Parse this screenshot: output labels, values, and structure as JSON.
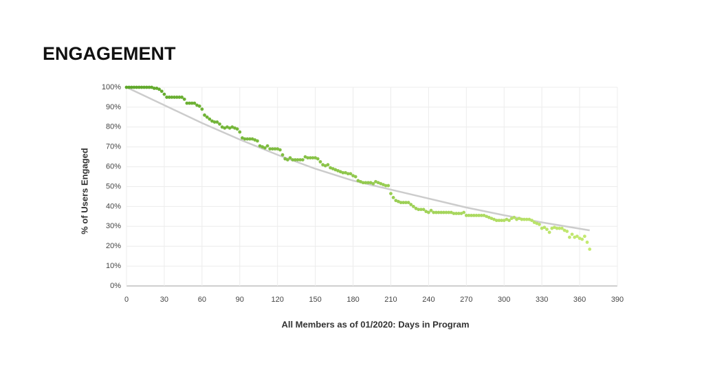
{
  "chart_data": {
    "type": "scatter",
    "title": "ENGAGEMENT",
    "xlabel": "All Members as of 01/2020: Days in Program",
    "ylabel": "% of Users Engaged",
    "xlim": [
      0,
      390
    ],
    "ylim": [
      0,
      100
    ],
    "xticks": [
      0,
      30,
      60,
      90,
      120,
      150,
      180,
      210,
      240,
      270,
      300,
      330,
      360,
      390
    ],
    "yticks": [
      {
        "value": 0,
        "label": "0%"
      },
      {
        "value": 10,
        "label": "10%"
      },
      {
        "value": 20,
        "label": "20%"
      },
      {
        "value": 30,
        "label": "30%"
      },
      {
        "value": 40,
        "label": "40%"
      },
      {
        "value": 50,
        "label": "50%"
      },
      {
        "value": 60,
        "label": "60%"
      },
      {
        "value": 70,
        "label": "70%"
      },
      {
        "value": 80,
        "label": "80%"
      },
      {
        "value": 90,
        "label": "90%"
      },
      {
        "value": 100,
        "label": "100%"
      }
    ],
    "grid": true,
    "colors": [
      "#5ea72a",
      "#cbee76"
    ],
    "x": [
      0,
      2,
      4,
      6,
      8,
      10,
      12,
      14,
      16,
      18,
      20,
      22,
      24,
      26,
      28,
      30,
      32,
      34,
      36,
      38,
      40,
      42,
      44,
      46,
      48,
      50,
      52,
      54,
      56,
      58,
      60,
      62,
      64,
      66,
      68,
      70,
      72,
      74,
      76,
      78,
      80,
      82,
      84,
      86,
      88,
      90,
      92,
      94,
      96,
      98,
      100,
      102,
      104,
      106,
      108,
      110,
      112,
      114,
      116,
      118,
      120,
      122,
      124,
      126,
      128,
      130,
      132,
      134,
      136,
      138,
      140,
      142,
      144,
      146,
      148,
      150,
      152,
      154,
      156,
      158,
      160,
      162,
      164,
      166,
      168,
      170,
      172,
      174,
      176,
      178,
      180,
      182,
      184,
      186,
      188,
      190,
      192,
      194,
      196,
      198,
      200,
      202,
      204,
      206,
      208,
      210,
      212,
      214,
      216,
      218,
      220,
      222,
      224,
      226,
      228,
      230,
      232,
      234,
      236,
      238,
      240,
      242,
      244,
      246,
      248,
      250,
      252,
      254,
      256,
      258,
      260,
      262,
      264,
      266,
      268,
      270,
      272,
      274,
      276,
      278,
      280,
      282,
      284,
      286,
      288,
      290,
      292,
      294,
      296,
      298,
      300,
      302,
      304,
      306,
      308,
      310,
      312,
      314,
      316,
      318,
      320,
      322,
      324,
      326,
      328,
      330,
      332,
      334,
      336,
      338,
      340,
      342,
      344,
      346,
      348,
      350,
      352,
      354,
      356,
      358,
      360,
      362,
      364,
      366,
      368
    ],
    "values": [
      100,
      100,
      100,
      100,
      100,
      100,
      100,
      100,
      100,
      100,
      100,
      99.5,
      99.5,
      99,
      98,
      96.5,
      95,
      95,
      95,
      95,
      95,
      95,
      95,
      94,
      92,
      92,
      92,
      92,
      91,
      90.5,
      89,
      86,
      85,
      84,
      83,
      82.5,
      82.5,
      81.5,
      80,
      79.5,
      80,
      79.5,
      80,
      79.5,
      79,
      77.5,
      74.5,
      74,
      74,
      74,
      74,
      73.5,
      73,
      70.5,
      70,
      69.5,
      70.5,
      69,
      69,
      69,
      69,
      68.5,
      66,
      64,
      63.5,
      64.5,
      63.5,
      63.5,
      63.5,
      63.5,
      63.5,
      65,
      64.5,
      64.5,
      64.5,
      64.5,
      64,
      62.5,
      61,
      60.5,
      61,
      59.5,
      59,
      58.5,
      58,
      57.5,
      57,
      57,
      56.5,
      56.5,
      55.5,
      55,
      53,
      52.5,
      52,
      52,
      52,
      52,
      51.5,
      52.5,
      52,
      51.5,
      51,
      50.5,
      50.5,
      46.5,
      44.5,
      43,
      42.5,
      42,
      42,
      42,
      42,
      41,
      40,
      39,
      38.5,
      38.5,
      38.5,
      37.5,
      37,
      38,
      37,
      37,
      37,
      37,
      37,
      37,
      37,
      37,
      36.5,
      36.5,
      36.5,
      36.5,
      37,
      35.5,
      35.5,
      35.5,
      35.5,
      35.5,
      35.5,
      35.5,
      35.5,
      35,
      34.5,
      34,
      33.5,
      33,
      33,
      33,
      33,
      33.5,
      33,
      34,
      34.5,
      33.5,
      34,
      33.5,
      33.5,
      33.5,
      33.5,
      33,
      32,
      31.5,
      31,
      29,
      29.5,
      28.5,
      27,
      29,
      29.5,
      29,
      29,
      29,
      28,
      27.5,
      24.5,
      26,
      24.5,
      25,
      24,
      23.5,
      25,
      22,
      18.5
    ],
    "trend": {
      "color": "#cccccc",
      "x": [
        0,
        30,
        60,
        90,
        120,
        150,
        180,
        210,
        240,
        270,
        300,
        330,
        368
      ],
      "values": [
        100,
        91,
        82,
        73.7,
        66,
        59,
        53,
        48.5,
        44,
        39.5,
        35.6,
        32,
        28
      ]
    }
  }
}
